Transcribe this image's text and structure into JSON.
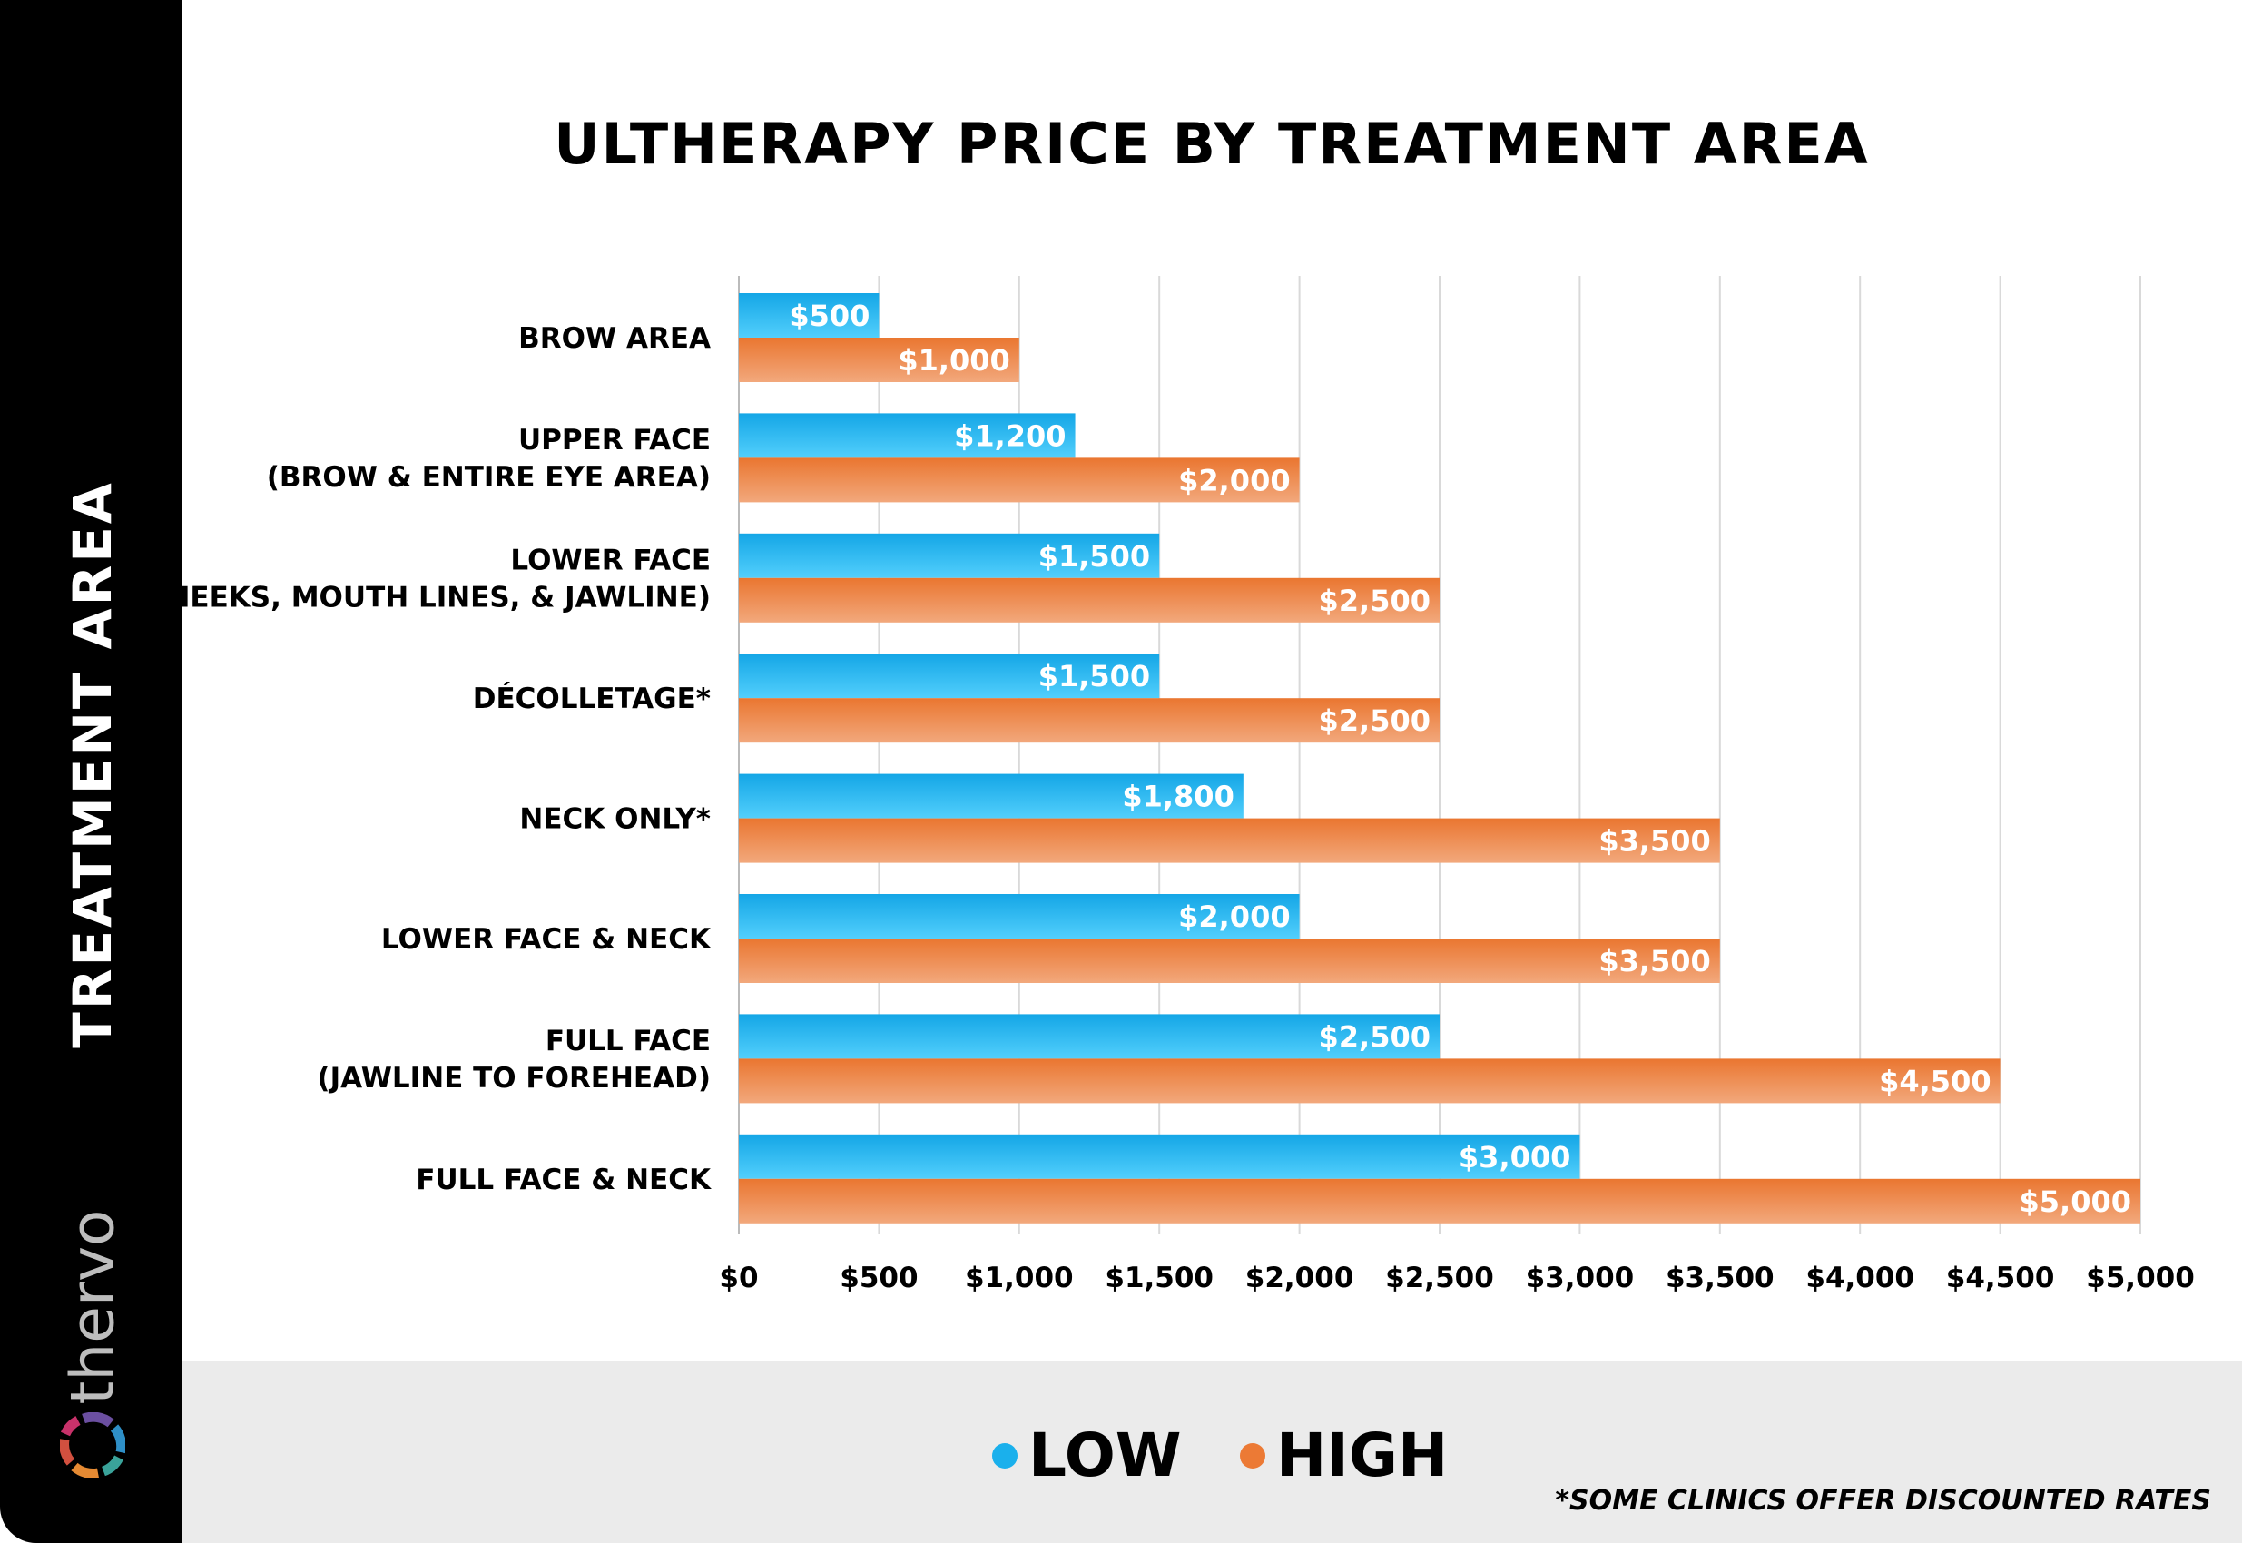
{
  "chart_data": {
    "type": "bar",
    "orientation": "horizontal",
    "title": "ULTHERAPY PRICE BY TREATMENT AREA",
    "ylabel": "TREATMENT AREA",
    "xlabel": "",
    "categories": [
      [
        "BROW AREA"
      ],
      [
        "UPPER FACE",
        "(BROW & ENTIRE EYE AREA)"
      ],
      [
        "LOWER FACE",
        "(CHEEKS, MOUTH LINES, & JAWLINE)"
      ],
      [
        "DÉCOLLETAGE*"
      ],
      [
        "NECK ONLY*"
      ],
      [
        "LOWER FACE & NECK"
      ],
      [
        "FULL FACE",
        "(JAWLINE TO FOREHEAD)"
      ],
      [
        "FULL FACE & NECK"
      ]
    ],
    "series": [
      {
        "name": "LOW",
        "color": "#1ab0ec",
        "values": [
          500,
          1200,
          1500,
          1500,
          1800,
          2000,
          2500,
          3000
        ],
        "labels": [
          "$500",
          "$1,200",
          "$1,500",
          "$1,500",
          "$1,800",
          "$2,000",
          "$2,500",
          "$3,000"
        ]
      },
      {
        "name": "HIGH",
        "color": "#ec7a35",
        "values": [
          1000,
          2000,
          2500,
          2500,
          3500,
          3500,
          4500,
          5000
        ],
        "labels": [
          "$1,000",
          "$2,000",
          "$2,500",
          "$2,500",
          "$3,500",
          "$3,500",
          "$4,500",
          "$5,000"
        ]
      }
    ],
    "xlim": [
      0,
      5000
    ],
    "xticks": [
      0,
      500,
      1000,
      1500,
      2000,
      2500,
      3000,
      3500,
      4000,
      4500,
      5000
    ],
    "xtick_labels": [
      "$0",
      "$500",
      "$1,000",
      "$1,500",
      "$2,000",
      "$2,500",
      "$3,000",
      "$3,500",
      "$4,000",
      "$4,500",
      "$5,000"
    ],
    "grid": "vertical",
    "legend": "bottom-center"
  },
  "side": {
    "title": "TREATMENT AREA",
    "logo": "thervo"
  },
  "footnote": "*SOME CLINICS OFFER DISCOUNTED RATES"
}
